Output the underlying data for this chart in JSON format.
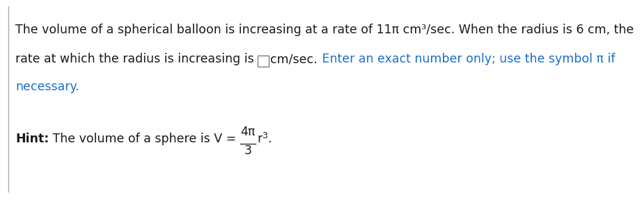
{
  "bg_color": "#ffffff",
  "black": "#1a1a1a",
  "blue": "#1a6fcc",
  "line1": "The volume of a spherical balloon is increasing at a rate of 11π cm³/sec. When the radius is 6 cm, the",
  "line2_black1": "rate at which the radius is increasing is ",
  "line2_black2": "cm/sec.",
  "line2_blue": " Enter an exact number only; use the symbol π if",
  "line3_blue": "necessary.",
  "hint_bold": "Hint:",
  "hint_rest": " The volume of a sphere is V = ",
  "frac_num": "4π",
  "frac_den": "3",
  "hint_r": "r",
  "hint_exp": "3",
  "hint_dot": ".",
  "font_size": 12.5,
  "fig_width": 9.22,
  "fig_height": 2.88,
  "dpi": 100
}
